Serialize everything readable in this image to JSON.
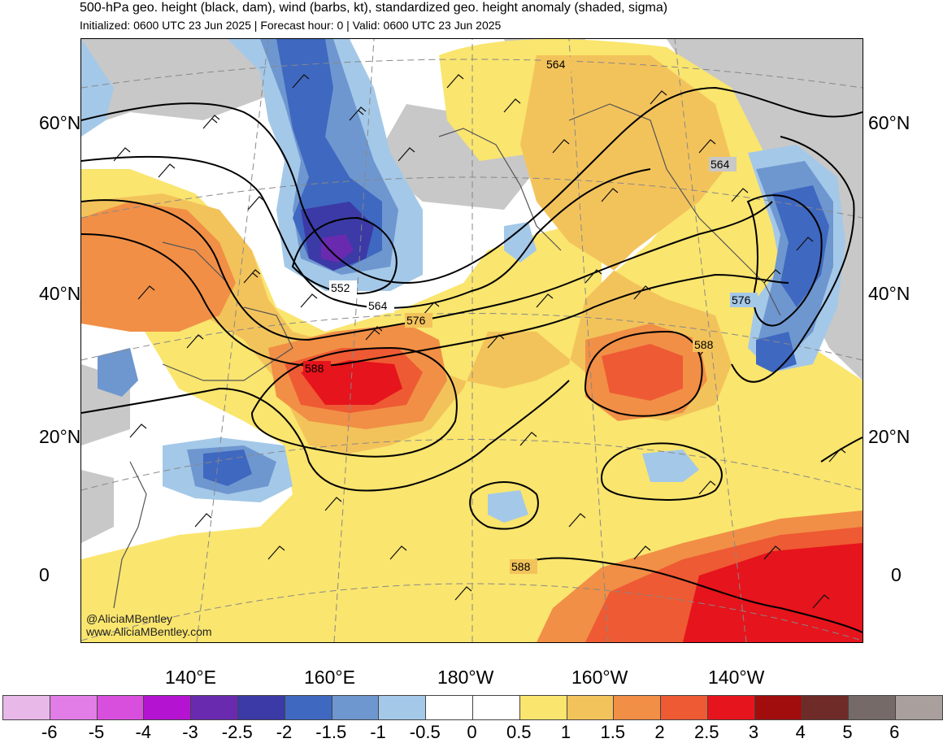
{
  "header": {
    "title": "500-hPa geo. height (black, dam), wind (barbs, kt), standardized geo. height anomaly (shaded, sigma)",
    "subtitle": "Initialized: 0600 UTC 23 Jun 2025 | Forecast hour: 0 | Valid: 0600 UTC 23 Jun 2025"
  },
  "map": {
    "lat_labels_left": [
      "60°N",
      "40°N",
      "20°N",
      "0"
    ],
    "lat_labels_right": [
      "60°N",
      "40°N",
      "20°N",
      "0"
    ],
    "lon_labels": [
      "140°E",
      "160°E",
      "180°W",
      "160°W",
      "140°W"
    ],
    "contour_labels": [
      "564",
      "564",
      "552",
      "564",
      "576",
      "588",
      "576",
      "588",
      "588"
    ],
    "credit_line1": "@AliciaMBentley",
    "credit_line2": "www.AliciaMBentley.com"
  },
  "colorbar": {
    "ticks": [
      "-6",
      "-5",
      "-4",
      "-3",
      "-2.5",
      "-2",
      "-1.5",
      "-1",
      "-0.5",
      "0",
      "0.5",
      "1",
      "1.5",
      "2",
      "2.5",
      "3",
      "4",
      "5",
      "6"
    ],
    "colors": [
      "#e8b8e8",
      "#e27de7",
      "#d94fdd",
      "#b414d2",
      "#6a2ab0",
      "#3b3aa6",
      "#3f68c0",
      "#6e97d0",
      "#a4c8e8",
      "#ffffff",
      "#ffffff",
      "#fae56e",
      "#f3c35b",
      "#f18f46",
      "#ee5a33",
      "#e6141c",
      "#a10d0d",
      "#6e2b27",
      "#756a68",
      "#a9a09e"
    ]
  }
}
